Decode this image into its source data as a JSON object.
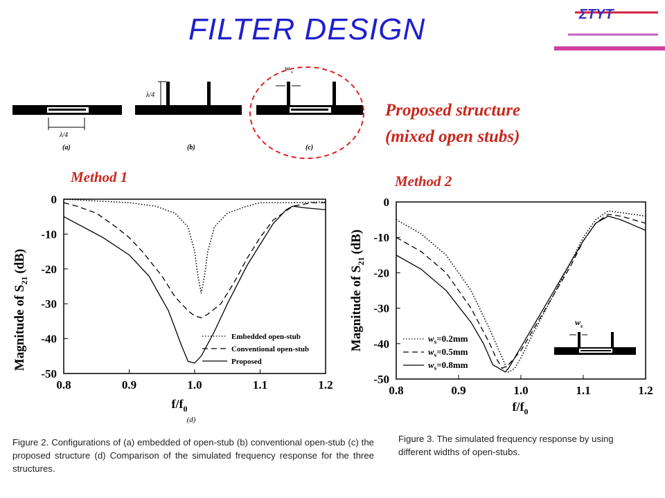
{
  "slide": {
    "title": "FILTER DESIGN",
    "logo": "ΣΤΥΤ",
    "method1": "Method 1",
    "method2": "Method 2",
    "proposed_line1": "Proposed structure",
    "proposed_line2": "(mixed open stubs)",
    "fig2_caption": "Figure 2. Configurations of (a) embedded of open-stub (b) conventional open-stub (c) the proposed structure (d) Comparison of the simulated frequency response for the three structures.",
    "fig3_caption": "Figure 3. The simulated frequency response by using different widths of open-stubs."
  },
  "diagrams": {
    "labels": [
      "(a)",
      "(b)",
      "(c)"
    ],
    "dim_a": "λ/4",
    "dim_b": "λ/4",
    "dim_c": "w",
    "dim_c_sub": "s",
    "accent_color": "#e02020"
  },
  "chart_data": [
    {
      "type": "line",
      "panel_label": "(d)",
      "xlabel_main": "f/f",
      "xlabel_sub": "0",
      "ylabel_main": "Magnitude of S",
      "ylabel_sub": "21",
      "ylabel_unit": "(dB)",
      "xlim": [
        0.8,
        1.2
      ],
      "ylim": [
        -50,
        0
      ],
      "xticks": [
        "0.8",
        "0.9",
        "1.0",
        "1.1",
        "1.2"
      ],
      "yticks": [
        "0",
        "-10",
        "-20",
        "-30",
        "-40",
        "-50"
      ],
      "legend_position": "bottom-right",
      "series": [
        {
          "name": "Embedded open-stub",
          "style": "dotted",
          "x": [
            0.8,
            0.85,
            0.9,
            0.94,
            0.97,
            0.99,
            1.0,
            1.005,
            1.01,
            1.015,
            1.02,
            1.03,
            1.05,
            1.08,
            1.1,
            1.15,
            1.2
          ],
          "y": [
            0,
            -0.5,
            -1,
            -2,
            -4,
            -8,
            -15,
            -22,
            -27,
            -22,
            -15,
            -8,
            -4,
            -2,
            -1,
            -1,
            -0.8
          ]
        },
        {
          "name": "Conventional open-stub",
          "style": "dashed",
          "x": [
            0.8,
            0.82,
            0.85,
            0.88,
            0.9,
            0.92,
            0.95,
            0.97,
            0.99,
            1.0,
            1.01,
            1.02,
            1.04,
            1.06,
            1.08,
            1.1,
            1.12,
            1.15,
            1.18,
            1.2
          ],
          "y": [
            -1,
            -2,
            -4,
            -8,
            -11,
            -15,
            -22,
            -28,
            -32,
            -33.5,
            -34,
            -33,
            -30,
            -24,
            -17,
            -11,
            -6,
            -2,
            -1,
            -1
          ]
        },
        {
          "name": "Proposed",
          "style": "solid",
          "x": [
            0.8,
            0.83,
            0.86,
            0.9,
            0.93,
            0.96,
            0.98,
            0.99,
            1.0,
            1.01,
            1.03,
            1.05,
            1.08,
            1.1,
            1.12,
            1.14,
            1.15,
            1.17,
            1.2
          ],
          "y": [
            -5,
            -8,
            -11,
            -16,
            -22,
            -32,
            -42,
            -46.5,
            -47,
            -45,
            -38,
            -30,
            -19,
            -13,
            -7,
            -3,
            -2,
            -2.5,
            -3
          ]
        }
      ]
    },
    {
      "type": "line",
      "xlabel_main": "f/f",
      "xlabel_sub": "0",
      "ylabel_main": "Magnitude of S",
      "ylabel_sub": "21",
      "ylabel_unit": "(dB)",
      "xlim": [
        0.8,
        1.2
      ],
      "ylim": [
        -50,
        0
      ],
      "xticks": [
        "0.8",
        "0.9",
        "1.0",
        "1.1",
        "1.2"
      ],
      "yticks": [
        "0",
        "-10",
        "-20",
        "-30",
        "-40",
        "-50"
      ],
      "legend_position": "bottom-left",
      "inset_label_main": "w",
      "inset_label_sub": "s",
      "series": [
        {
          "name": "ws=0.2mm",
          "legend_main": "w",
          "legend_sub": "s",
          "legend_rest": "=0.2mm",
          "style": "dotted",
          "x": [
            0.8,
            0.84,
            0.88,
            0.92,
            0.95,
            0.97,
            0.98,
            0.99,
            1.0,
            1.02,
            1.05,
            1.08,
            1.1,
            1.12,
            1.14,
            1.16,
            1.18,
            1.2
          ],
          "y": [
            -5,
            -9,
            -15,
            -25,
            -36,
            -44,
            -48,
            -47,
            -44,
            -37,
            -27,
            -17,
            -10,
            -5,
            -2.5,
            -3,
            -3.5,
            -4
          ]
        },
        {
          "name": "ws=0.5mm",
          "legend_main": "w",
          "legend_sub": "s",
          "legend_rest": "=0.5mm",
          "style": "dashed",
          "x": [
            0.8,
            0.84,
            0.88,
            0.92,
            0.95,
            0.96,
            0.97,
            0.98,
            1.0,
            1.02,
            1.05,
            1.08,
            1.1,
            1.12,
            1.14,
            1.16,
            1.18,
            1.2
          ],
          "y": [
            -10,
            -14,
            -20,
            -30,
            -40,
            -44,
            -47,
            -46,
            -42,
            -36,
            -27,
            -18,
            -11,
            -6,
            -3.5,
            -4,
            -5,
            -6
          ]
        },
        {
          "name": "ws=0.8mm",
          "legend_main": "w",
          "legend_sub": "s",
          "legend_rest": "=0.8mm",
          "style": "solid",
          "x": [
            0.8,
            0.84,
            0.88,
            0.92,
            0.94,
            0.955,
            0.96,
            0.97,
            0.975,
            0.98,
            1.0,
            1.02,
            1.05,
            1.08,
            1.1,
            1.12,
            1.14,
            1.16,
            1.18,
            1.2
          ],
          "y": [
            -15,
            -19,
            -25,
            -34,
            -40,
            -46,
            -46.5,
            -47.5,
            -48,
            -47,
            -41,
            -35,
            -26,
            -17,
            -11,
            -6,
            -4,
            -5,
            -6.5,
            -8
          ]
        }
      ]
    }
  ]
}
